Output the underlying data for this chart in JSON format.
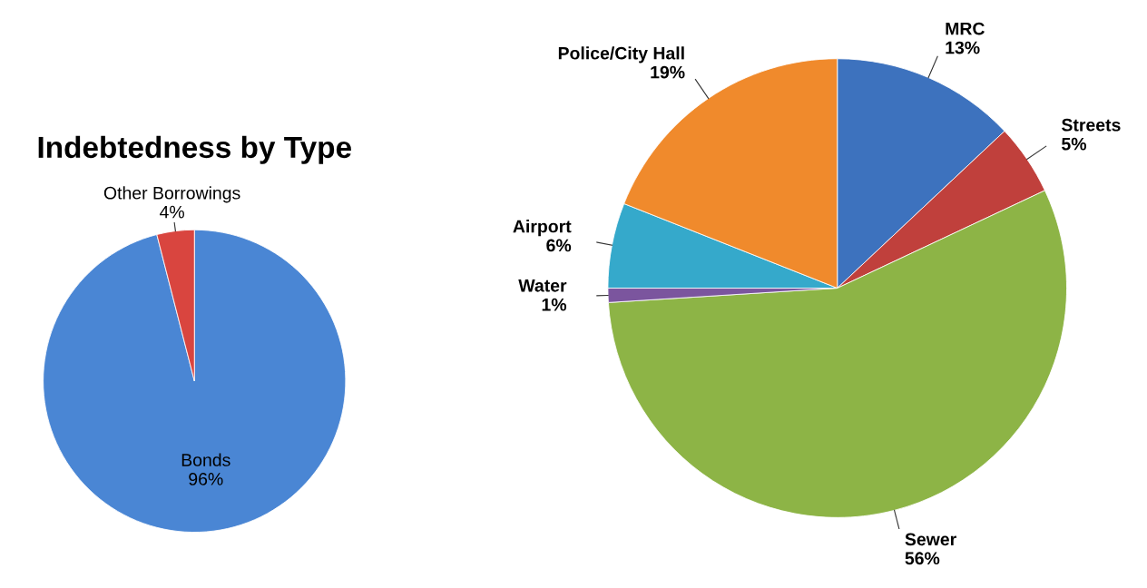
{
  "chart_data": [
    {
      "type": "pie",
      "title": "Indebtedness by Type",
      "categories": [
        "Bonds",
        "Other Borrowings"
      ],
      "values": [
        96,
        4
      ],
      "value_labels": [
        "96%",
        "4%"
      ],
      "colors": [
        "#4a86d4",
        "#d9453f"
      ]
    },
    {
      "type": "pie",
      "categories": [
        "MRC",
        "Streets",
        "Sewer",
        "Water",
        "Airport",
        "Police/City Hall"
      ],
      "values": [
        13,
        5,
        56,
        1,
        6,
        19
      ],
      "value_labels": [
        "13%",
        "5%",
        "56%",
        "1%",
        "6%",
        "19%"
      ],
      "colors": [
        "#3d72be",
        "#c0403c",
        "#8db446",
        "#7b559e",
        "#35a9cb",
        "#f08a2c"
      ]
    }
  ]
}
